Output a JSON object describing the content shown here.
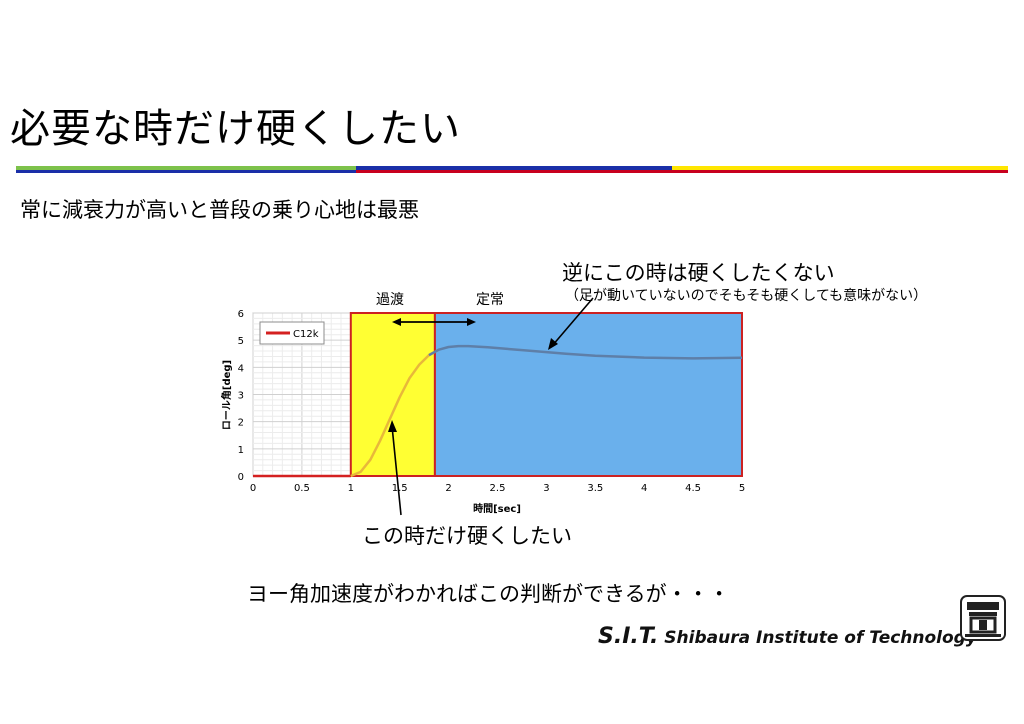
{
  "slide": {
    "title": "必要な時だけ硬くしたい",
    "subtitle": "常に減衰力が高いと普段の乗り心地は最悪",
    "note_top": "逆にこの時は硬くしたくない",
    "note_top_sub": "（足が動いていないのでそもそも硬くしても意味がない）",
    "note_bottom": "この時だけ硬くしたい",
    "conclusion": "ヨー角加速度がわかればこの判断ができるが・・・",
    "region_transient": "過渡",
    "region_steady": "定常"
  },
  "logo": {
    "sit": "S.I.T.",
    "name": "Shibaura Institute of Technology"
  },
  "colors": {
    "line": "#d42020",
    "transient_fill": "#ffff33",
    "steady_fill": "#6ab0ec",
    "region_border": "#cc2222",
    "rule_green": "#7dc24b",
    "rule_blue": "#1a2fa8",
    "rule_red": "#c8001e",
    "rule_yellow": "#ffe600"
  },
  "chart_data": {
    "type": "line",
    "xlabel": "時間[sec]",
    "ylabel": "ロール角[deg]",
    "xlim": [
      0,
      5
    ],
    "ylim": [
      0,
      6
    ],
    "xticks": [
      "0",
      "0.5",
      "1",
      "1.5",
      "2",
      "2.5",
      "3",
      "3.5",
      "4",
      "4.5",
      "5"
    ],
    "yticks": [
      "0",
      "1",
      "2",
      "3",
      "4",
      "5",
      "6"
    ],
    "grid": true,
    "legend": "top-left",
    "series": [
      {
        "name": "C12k",
        "x": [
          0,
          1.0,
          1.1,
          1.2,
          1.3,
          1.4,
          1.5,
          1.6,
          1.7,
          1.8,
          1.9,
          2.0,
          2.1,
          2.2,
          2.4,
          2.6,
          2.8,
          3.0,
          3.2,
          3.5,
          4.0,
          4.5,
          5.0
        ],
        "y": [
          0,
          0,
          0.15,
          0.6,
          1.3,
          2.1,
          2.9,
          3.6,
          4.1,
          4.45,
          4.65,
          4.75,
          4.78,
          4.78,
          4.74,
          4.68,
          4.62,
          4.56,
          4.5,
          4.43,
          4.36,
          4.33,
          4.35
        ]
      }
    ],
    "regions": [
      {
        "label": "過渡",
        "x": [
          1.0,
          1.86
        ]
      },
      {
        "label": "定常",
        "x": [
          1.86,
          5.0
        ]
      }
    ]
  }
}
